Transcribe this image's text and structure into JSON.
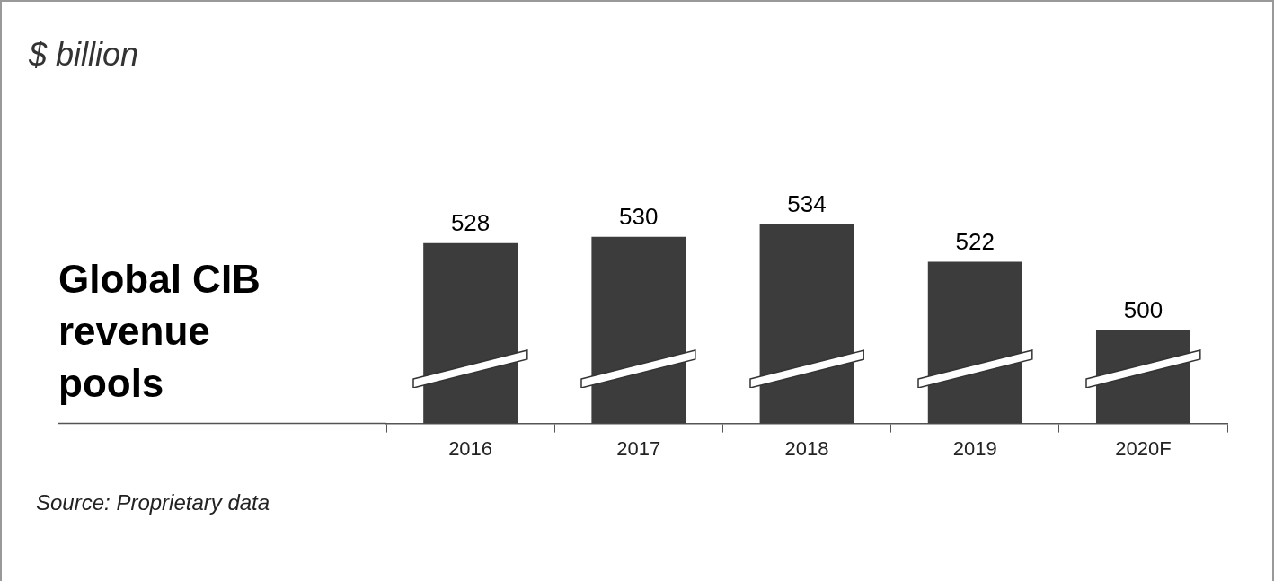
{
  "chart_data": {
    "type": "bar",
    "title": "Global CIB revenue pools",
    "subtitle": "$ billion",
    "categories": [
      "2016",
      "2017",
      "2018",
      "2019",
      "2020F"
    ],
    "values": [
      528,
      530,
      534,
      522,
      500
    ],
    "color": "#3c3c3c",
    "data_labels": true,
    "grid": false,
    "legend": false,
    "annotations": [
      "Source: Proprietary data"
    ]
  }
}
